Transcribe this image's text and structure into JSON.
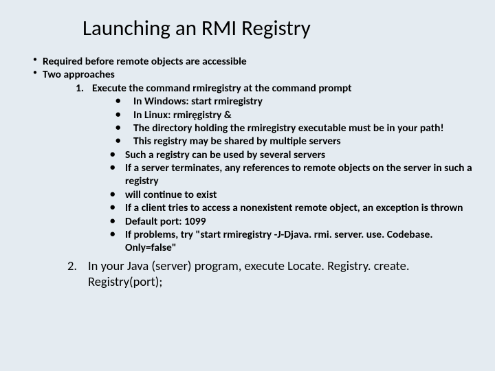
{
  "title": "Launching an RMI Registry",
  "b1": "Required before remote objects are accessible",
  "b2": "Two approaches",
  "n1_num": "1.",
  "n1": "Execute the command rmiregistry at the command prompt",
  "s1": "In Windows: start rmiregistry",
  "s2": "In Linux: rmiręgistry &",
  "s3": "The directory holding the rmiregistry executable must be in your path!",
  "s4": "This registry may be shared by multiple servers",
  "s5": "Such a registry can be used by several servers",
  "s6": "If a server terminates, any references to remote objects on the server in such a registry",
  "s7": "will continue to exist",
  "s8": "If a client tries to access a nonexistent remote object, an exception is thrown",
  "s9": "Default port: 1099",
  "s10": "If problems, try \"start rmiregistry -J-Djava. rmi. server. use. Codebase. Only=false\"",
  "n2_num": "2.",
  "n2": "In your Java (server) program, execute Locate. Registry. create. Registry(port);"
}
